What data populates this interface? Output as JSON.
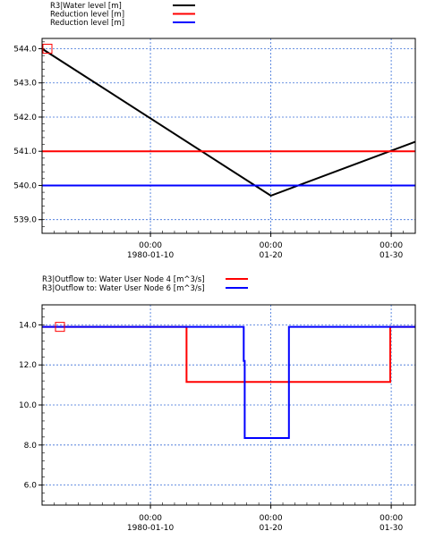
{
  "chart_data": [
    {
      "type": "line",
      "x_tick_labels": [
        {
          "date": "1980-01-10",
          "line1": "00:00",
          "line2": "1980-01-10"
        },
        {
          "date": "1980-01-20",
          "line1": "00:00",
          "line2": "01-20"
        },
        {
          "date": "1980-01-30",
          "line1": "00:00",
          "line2": "01-30"
        }
      ],
      "xlim": [
        "1980-01-01T00:00",
        "1980-02-01T00:00"
      ],
      "ylim": [
        538.6,
        544.3
      ],
      "y_ticks": [
        539.0,
        540.0,
        541.0,
        542.0,
        543.0,
        544.0
      ],
      "y_tick_labels": [
        "539.0",
        "540.0",
        "541.0",
        "542.0",
        "543.0",
        "544.0"
      ],
      "grid": true,
      "legend_position": "top-left",
      "series": [
        {
          "name": "R3|Water level   [m]",
          "color": "#000000",
          "x": [
            "1980-01-01T00:00",
            "1980-01-20T00:00",
            "1980-02-01T00:00"
          ],
          "y": [
            544.0,
            539.7,
            541.28
          ]
        },
        {
          "name": "Reduction level  [m]",
          "color": "#ff0000",
          "x": [
            "1980-01-01T00:00",
            "1980-02-01T00:00"
          ],
          "y": [
            541.0,
            541.0
          ]
        },
        {
          "name": "Reduction level  [m]",
          "color": "#0000ff",
          "x": [
            "1980-01-01T00:00",
            "1980-02-01T00:00"
          ],
          "y": [
            540.0,
            540.0
          ]
        }
      ]
    },
    {
      "type": "line",
      "x_tick_labels": [
        {
          "date": "1980-01-10",
          "line1": "00:00",
          "line2": "1980-01-10"
        },
        {
          "date": "1980-01-20",
          "line1": "00:00",
          "line2": "01-20"
        },
        {
          "date": "1980-01-30",
          "line1": "00:00",
          "line2": "01-30"
        }
      ],
      "xlim": [
        "1980-01-01T00:00",
        "1980-02-01T00:00"
      ],
      "ylim": [
        5.0,
        15.0
      ],
      "y_ticks": [
        6.0,
        8.0,
        10.0,
        12.0,
        14.0
      ],
      "y_tick_labels": [
        "6.0",
        "8.0",
        "10.0",
        "12.0",
        "14.0"
      ],
      "grid": true,
      "legend_position": "top-left",
      "series": [
        {
          "name": "R3|Outflow to:  Water User Node 4 [m^3/s]",
          "color": "#ff0000",
          "x": [
            "1980-01-01T00:00",
            "1980-01-13T00:00",
            "1980-01-13T00:00",
            "1980-01-29T22:00",
            "1980-01-29T22:00",
            "1980-02-01T00:00"
          ],
          "y": [
            13.9,
            13.9,
            11.15,
            11.15,
            13.9,
            13.9
          ]
        },
        {
          "name": "R3|Outflow to:  Water User Node 6 [m^3/s]",
          "color": "#0000ff",
          "x": [
            "1980-01-01T00:00",
            "1980-01-17T18:00",
            "1980-01-17T18:00",
            "1980-01-17T20:00",
            "1980-01-17T20:00",
            "1980-01-21T12:00",
            "1980-01-21T12:00",
            "1980-02-01T00:00"
          ],
          "y": [
            13.9,
            13.9,
            12.2,
            12.2,
            8.35,
            8.35,
            13.9,
            13.9
          ]
        }
      ]
    }
  ]
}
